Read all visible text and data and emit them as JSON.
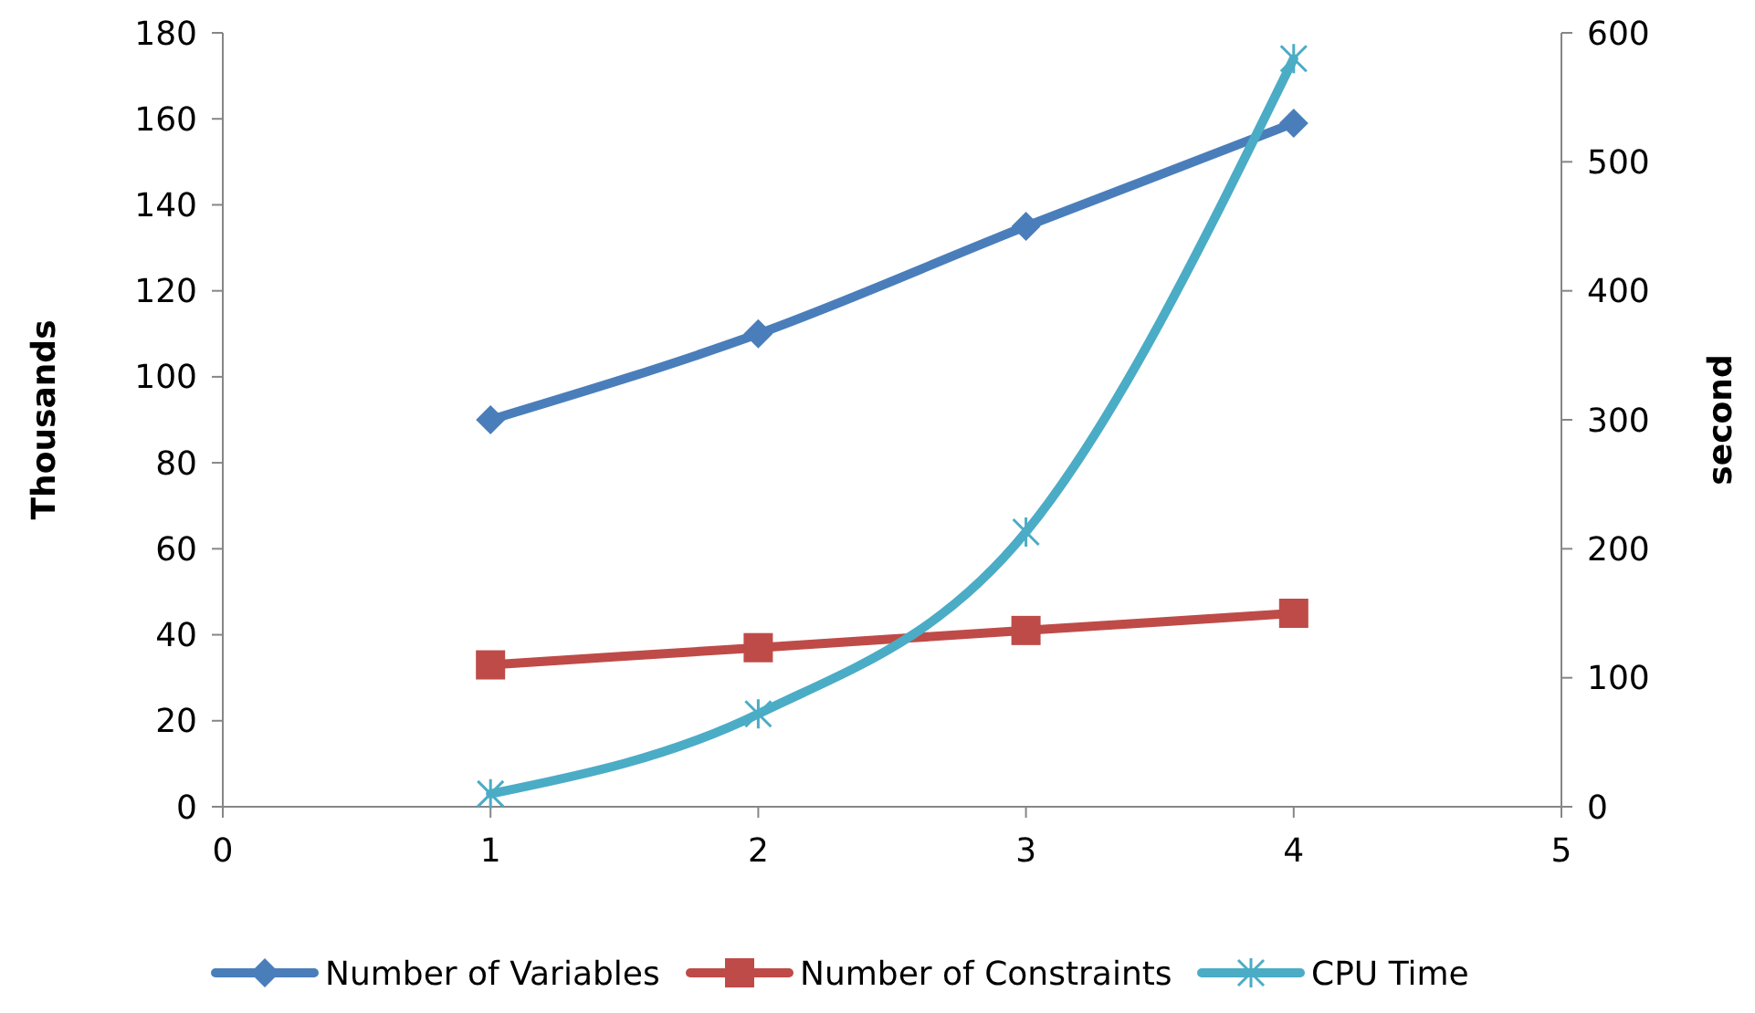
{
  "chart_data": {
    "type": "line",
    "x": [
      1,
      2,
      3,
      4
    ],
    "xlim": [
      0,
      5
    ],
    "xticks": [
      0,
      1,
      2,
      3,
      4,
      5
    ],
    "ylim": [
      0,
      180
    ],
    "yticks": [
      0,
      20,
      40,
      60,
      80,
      100,
      120,
      140,
      160,
      180
    ],
    "y2lim": [
      0,
      600
    ],
    "y2ticks": [
      0,
      100,
      200,
      300,
      400,
      500,
      600
    ],
    "ylabel": "Thousands",
    "y2label": "second",
    "grid": false,
    "legend": "bottom",
    "line_style": "solid",
    "series": [
      {
        "name": "Number of Variables",
        "color": "#4a7ebb",
        "marker": "diamond",
        "values": [
          90,
          110,
          135,
          159
        ]
      },
      {
        "name": "Number of Constraints",
        "color": "#be4b48",
        "marker": "square",
        "values": [
          33,
          37,
          41,
          45
        ]
      },
      {
        "name": "CPU Time",
        "color": "#4bacc6",
        "marker": "cross",
        "axis": "y2",
        "values": [
          10,
          72,
          213,
          580
        ]
      }
    ]
  }
}
